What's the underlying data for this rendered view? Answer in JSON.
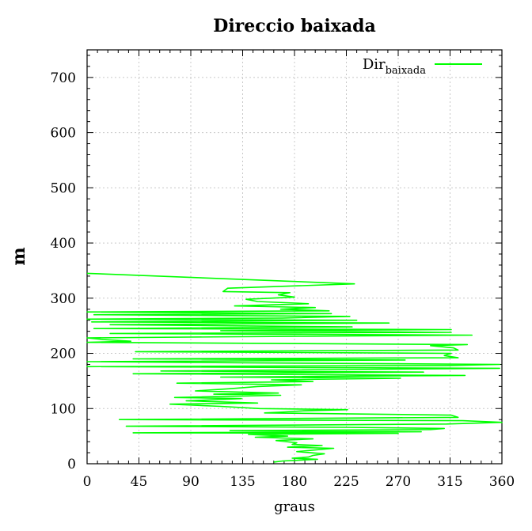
{
  "chart_data": {
    "type": "line",
    "title": "Direccio baixada",
    "xlabel": "graus",
    "ylabel": "m",
    "xlim": [
      0,
      360
    ],
    "ylim": [
      0,
      750
    ],
    "xticks": [
      0,
      45,
      90,
      135,
      180,
      225,
      270,
      315,
      360
    ],
    "yticks": [
      0,
      100,
      200,
      300,
      400,
      500,
      600,
      700
    ],
    "grid": true,
    "legend_position": "top-right",
    "colors": {
      "series": "#00ff00",
      "grid": "#c8c8c8",
      "axis": "#000000"
    },
    "series": [
      {
        "name": "Dir",
        "name_subscript": "baixada",
        "points": [
          [
            0,
            345
          ],
          [
            232,
            326
          ],
          [
            122,
            318
          ],
          [
            118,
            312
          ],
          [
            176,
            310
          ],
          [
            166,
            306
          ],
          [
            180,
            302
          ],
          [
            138,
            298
          ],
          [
            148,
            294
          ],
          [
            192,
            290
          ],
          [
            128,
            286
          ],
          [
            198,
            283
          ],
          [
            168,
            280
          ],
          [
            210,
            277
          ],
          [
            0,
            275
          ],
          [
            212,
            272
          ],
          [
            6,
            270
          ],
          [
            228,
            267
          ],
          [
            170,
            264
          ],
          [
            0,
            262
          ],
          [
            234,
            260
          ],
          [
            4,
            257
          ],
          [
            262,
            255
          ],
          [
            20,
            252
          ],
          [
            230,
            248
          ],
          [
            6,
            245
          ],
          [
            316,
            243
          ],
          [
            116,
            241
          ],
          [
            316,
            238
          ],
          [
            20,
            236
          ],
          [
            334,
            233
          ],
          [
            122,
            230
          ],
          [
            0,
            228
          ],
          [
            14,
            225
          ],
          [
            38,
            222
          ],
          [
            0,
            220
          ],
          [
            330,
            216
          ],
          [
            298,
            214
          ],
          [
            318,
            210
          ],
          [
            322,
            206
          ],
          [
            42,
            203
          ],
          [
            316,
            200
          ],
          [
            310,
            196
          ],
          [
            322,
            192
          ],
          [
            40,
            190
          ],
          [
            276,
            188
          ],
          [
            0,
            185
          ],
          [
            134,
            183
          ],
          [
            358,
            180
          ],
          [
            312,
            178
          ],
          [
            0,
            176
          ],
          [
            358,
            173
          ],
          [
            64,
            168
          ],
          [
            292,
            166
          ],
          [
            40,
            163
          ],
          [
            328,
            160
          ],
          [
            116,
            157
          ],
          [
            272,
            155
          ],
          [
            160,
            152
          ],
          [
            196,
            149
          ],
          [
            78,
            146
          ],
          [
            186,
            143
          ],
          [
            148,
            140
          ],
          [
            124,
            136
          ],
          [
            94,
            132
          ],
          [
            166,
            128
          ],
          [
            110,
            126
          ],
          [
            168,
            124
          ],
          [
            76,
            120
          ],
          [
            134,
            118
          ],
          [
            86,
            114
          ],
          [
            148,
            110
          ],
          [
            72,
            108
          ],
          [
            116,
            104
          ],
          [
            150,
            100
          ],
          [
            226,
            98
          ],
          [
            188,
            96
          ],
          [
            172,
            94
          ],
          [
            154,
            92
          ],
          [
            238,
            90
          ],
          [
            316,
            88
          ],
          [
            322,
            84
          ],
          [
            28,
            80
          ],
          [
            326,
            78
          ],
          [
            360,
            75
          ],
          [
            312,
            72
          ],
          [
            34,
            68
          ],
          [
            226,
            66
          ],
          [
            310,
            64
          ],
          [
            298,
            62
          ],
          [
            124,
            60
          ],
          [
            290,
            58
          ],
          [
            40,
            56
          ],
          [
            270,
            55
          ],
          [
            140,
            53
          ],
          [
            174,
            50
          ],
          [
            146,
            48
          ],
          [
            196,
            45
          ],
          [
            164,
            42
          ],
          [
            182,
            38
          ],
          [
            178,
            35
          ],
          [
            204,
            33
          ],
          [
            174,
            30
          ],
          [
            214,
            28
          ],
          [
            198,
            25
          ],
          [
            182,
            22
          ],
          [
            206,
            18
          ],
          [
            196,
            15
          ],
          [
            192,
            12
          ],
          [
            178,
            10
          ],
          [
            200,
            8
          ],
          [
            170,
            5
          ],
          [
            162,
            3
          ]
        ]
      }
    ]
  }
}
